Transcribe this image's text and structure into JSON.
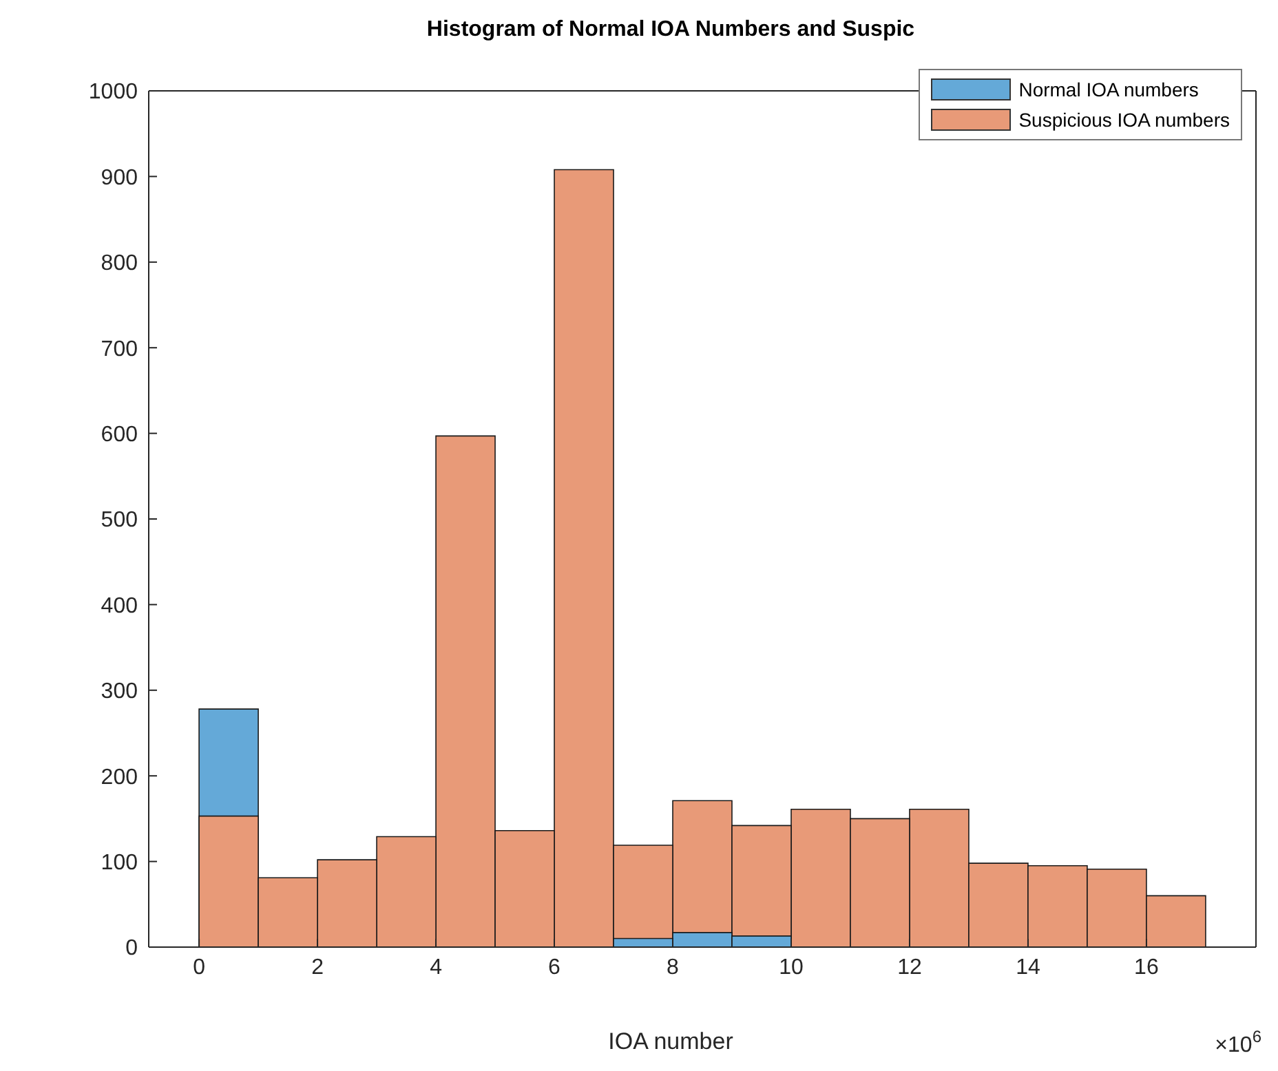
{
  "chart_data": {
    "type": "histogram",
    "title": "Histogram of Normal IOA Numbers and Suspic",
    "xlabel": "IOA number",
    "annotations": [
      "×10$^{6}$"
    ],
    "bins": [
      0,
      1,
      2,
      3,
      4,
      5,
      6,
      7,
      8,
      9,
      10,
      11,
      12,
      13,
      14,
      15,
      16,
      17
    ],
    "series": [
      {
        "name": "Normal IOA numbers",
        "color": "#64a9d8",
        "values": [
          278,
          0,
          0,
          0,
          0,
          0,
          0,
          10,
          17,
          13,
          0,
          0,
          0,
          0,
          0,
          0,
          0
        ]
      },
      {
        "name": "Suspicious IOA numbers",
        "color": "#e89a78",
        "values": [
          153,
          81,
          102,
          129,
          597,
          136,
          908,
          119,
          171,
          142,
          161,
          150,
          161,
          98,
          95,
          91,
          60
        ]
      }
    ],
    "xlim": [
      -0.85,
      17.85
    ],
    "xticks": [
      0,
      2,
      4,
      6,
      8,
      10,
      12,
      14,
      16
    ],
    "ylim": [
      0,
      1000
    ],
    "yticks": [
      0,
      100,
      200,
      300,
      400,
      500,
      600,
      700,
      800,
      900,
      1000
    ],
    "legend": "top right"
  }
}
